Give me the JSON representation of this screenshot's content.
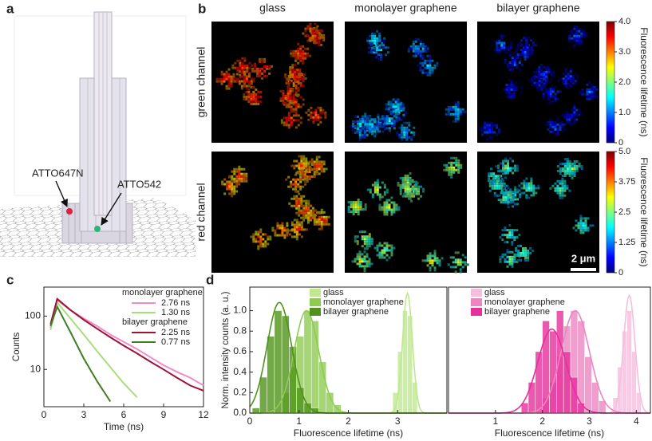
{
  "panels": {
    "a": {
      "label": "a",
      "annotations": [
        "ATTO647N",
        "ATTO542"
      ]
    },
    "b": {
      "label": "b",
      "columns": [
        "glass",
        "monolayer graphene",
        "bilayer graphene"
      ],
      "rows": [
        "green channel",
        "red channel"
      ],
      "colorbars": [
        {
          "title": "Fluorescence lifetime (ns)",
          "lim": [
            0,
            4
          ],
          "ticks": [
            0,
            {
              "value": 1,
              "label": "1.0"
            },
            {
              "value": 2,
              "label": "2.0"
            },
            {
              "value": 3,
              "label": "3.0"
            },
            {
              "value": 4,
              "label": "4.0"
            }
          ]
        },
        {
          "title": "Fluorescence lifetime (ns)",
          "lim": [
            0,
            5
          ],
          "ticks": [
            0,
            1.25,
            2.5,
            3.75,
            {
              "value": 5,
              "label": "5.0"
            }
          ]
        }
      ],
      "scale_bar": "2 μm"
    },
    "c": {
      "label": "c"
    },
    "d": {
      "label": "d"
    }
  },
  "chart_data": [
    {
      "type": "line",
      "xlabel": "Time (ns)",
      "ylabel": "Counts",
      "x": [
        0.5,
        1,
        2,
        3,
        4,
        5,
        6,
        7,
        8,
        9,
        10,
        11,
        12
      ],
      "xlim": [
        0,
        12
      ],
      "xticks": [
        0,
        3,
        6,
        9,
        12
      ],
      "ylim": [
        2,
        350
      ],
      "yticks": [
        10,
        100
      ],
      "ylog": true,
      "groups": [
        {
          "name": "monolayer graphene",
          "series": [
            {
              "name": "2.76 ns",
              "color": "#f08cc8",
              "values": [
                60,
                200,
                130,
                90,
                65,
                45,
                33,
                24,
                17,
                12,
                9,
                7,
                5
              ]
            },
            {
              "name": "1.30 ns",
              "color": "#a9dc7a",
              "values": [
                55,
                180,
                90,
                45,
                22,
                11,
                5.5,
                3,
                null,
                null,
                null,
                null,
                null
              ]
            }
          ]
        },
        {
          "name": "bilayer graphene",
          "series": [
            {
              "name": "2.25 ns",
              "color": "#9e1238",
              "values": [
                70,
                210,
                130,
                85,
                58,
                40,
                28,
                20,
                14,
                10,
                7,
                5,
                4
              ]
            },
            {
              "name": "0.77 ns",
              "color": "#3f7f22",
              "values": [
                65,
                150,
                50,
                16,
                6,
                2.5,
                null,
                null,
                null,
                null,
                null,
                null,
                null
              ]
            }
          ]
        }
      ]
    },
    {
      "type": "histogram",
      "xlabel": "Fluorescence lifetime (ns)",
      "ylabel": "Norm. intensity counts (a. u.)",
      "xlim": [
        0,
        4
      ],
      "xticks": [
        0,
        1,
        2,
        3
      ],
      "ylim": [
        0,
        1.23
      ],
      "yticks": [
        {
          "value": 0,
          "label": "0.0"
        },
        {
          "value": 0.2,
          "label": "0.2"
        },
        {
          "value": 0.4,
          "label": "0.4"
        },
        {
          "value": 0.6,
          "label": "0.6"
        },
        {
          "value": 0.8,
          "label": "0.8"
        },
        {
          "value": 1,
          "label": "1.0"
        }
      ],
      "series": [
        {
          "name": "glass",
          "color": "#bfe88f",
          "bins": [
            2.9,
            3.0,
            3.1,
            3.2,
            3.3,
            3.4
          ],
          "values": [
            0.2,
            0.6,
            1.0,
            0.95,
            0.3
          ],
          "fit": {
            "center": 3.2,
            "sigma": 0.1,
            "peak": 1.17
          }
        },
        {
          "name": "monolayer graphene",
          "color": "#8fcb52",
          "bins": [
            0.65,
            0.8,
            0.95,
            1.1,
            1.25,
            1.4,
            1.55,
            1.7,
            1.85
          ],
          "values": [
            0.2,
            0.45,
            0.75,
            1.0,
            0.9,
            0.5,
            0.2,
            0.08
          ],
          "fit": {
            "center": 1.15,
            "sigma": 0.25,
            "peak": 1.0
          }
        },
        {
          "name": "bilayer graphene",
          "color": "#4f9418",
          "bins": [
            0.05,
            0.2,
            0.35,
            0.5,
            0.65,
            0.8,
            0.95,
            1.1,
            1.25,
            1.4
          ],
          "values": [
            0.05,
            0.35,
            0.75,
            1.0,
            0.95,
            0.65,
            0.25,
            0.1,
            0.05
          ],
          "fit": {
            "center": 0.6,
            "sigma": 0.25,
            "peak": 1.08
          }
        }
      ]
    },
    {
      "type": "histogram",
      "xlabel": "Fluorescence lifetime (ns)",
      "xlim": [
        0,
        4.3
      ],
      "xticks": [
        1,
        2,
        3,
        4
      ],
      "ylim": [
        0,
        1.23
      ],
      "series": [
        {
          "name": "glass",
          "color": "#f5bedc",
          "bins": [
            3.5,
            3.6,
            3.7,
            3.8,
            3.9,
            4.0,
            4.1
          ],
          "values": [
            0.15,
            0.45,
            0.8,
            1.0,
            0.6,
            0.2
          ],
          "fit": {
            "center": 3.85,
            "sigma": 0.12,
            "peak": 1.15
          }
        },
        {
          "name": "monolayer graphene",
          "color": "#ec86c0",
          "bins": [
            2.0,
            2.15,
            2.3,
            2.45,
            2.6,
            2.75,
            2.9,
            3.05,
            3.2,
            3.35
          ],
          "values": [
            0.15,
            0.3,
            0.55,
            0.85,
            1.0,
            0.9,
            0.55,
            0.3,
            0.12
          ],
          "fit": {
            "center": 2.7,
            "sigma": 0.3,
            "peak": 1.0
          }
        },
        {
          "name": "bilayer graphene",
          "color": "#e6309a",
          "bins": [
            1.55,
            1.7,
            1.85,
            2.0,
            2.15,
            2.3,
            2.45,
            2.6,
            2.75,
            2.9
          ],
          "values": [
            0.1,
            0.3,
            0.6,
            0.9,
            0.8,
            1.0,
            0.6,
            0.35,
            0.1
          ],
          "fit": {
            "center": 2.2,
            "sigma": 0.3,
            "peak": 0.82
          }
        }
      ]
    }
  ]
}
